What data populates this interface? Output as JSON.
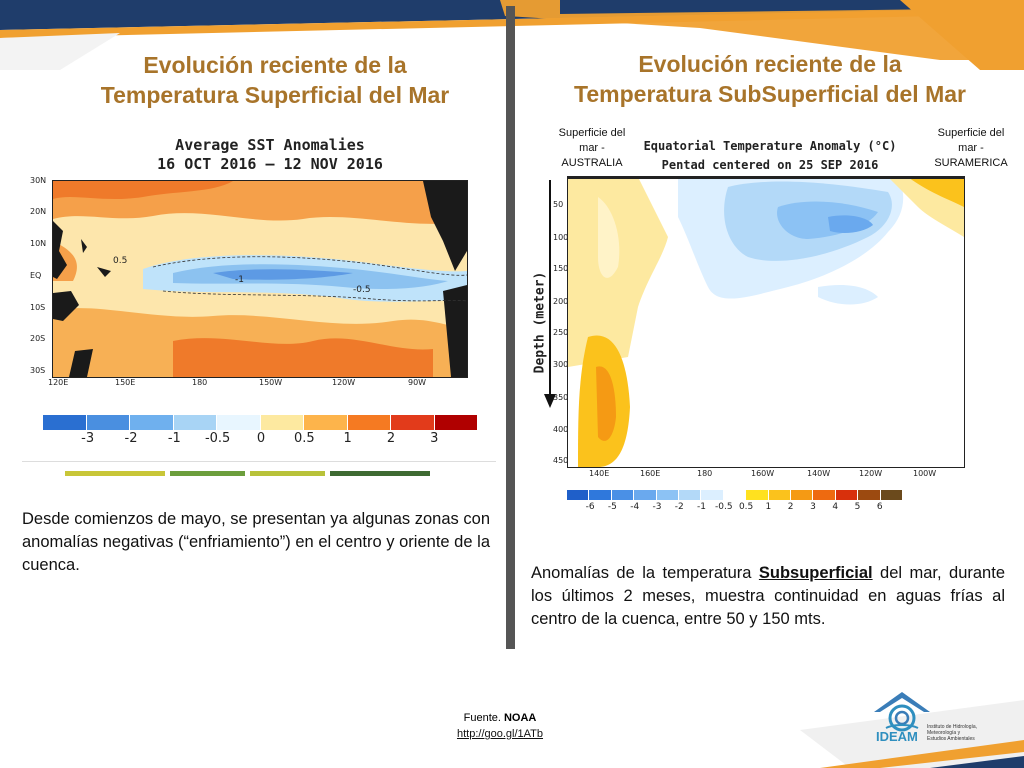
{
  "colors": {
    "title": "#a8742a",
    "band_orange": "#f0a030",
    "band_navy": "#1f3d6b",
    "band_grey": "#8a8a8a",
    "divider": "#555555"
  },
  "left": {
    "title_line1": "Evolución reciente de la",
    "title_line2": "Temperatura Superficial del Mar",
    "map_title_1": "Average SST Anomalies",
    "map_title_2": "16 OCT 2016 – 12 NOV 2016",
    "lat_labels": [
      "30N",
      "20N",
      "10N",
      "EQ",
      "10S",
      "20S",
      "30S"
    ],
    "lon_labels": [
      "120E",
      "150E",
      "180",
      "150W",
      "120W",
      "90W"
    ],
    "contour_labels": [
      "0.5",
      "-1",
      "-0.5"
    ],
    "legend_labels": [
      "-3",
      "-2",
      "-1",
      "-0.5",
      "0",
      "0.5",
      "1",
      "2",
      "3"
    ],
    "legend_colors": [
      "#2a6fd1",
      "#4a8fe0",
      "#6fb0ee",
      "#a8d4f5",
      "#e8f6ff",
      "#fde9a0",
      "#fdb44b",
      "#f57a22",
      "#e23b1b",
      "#b00000"
    ],
    "paragraph": "Desde comienzos de mayo, se presentan ya algunas zonas con anomalías negativas (“enfriamiento”) en el centro y oriente de la cuenca."
  },
  "right": {
    "title_line1": "Evolución reciente de la",
    "title_line2": "Temperatura SubSuperficial del Mar",
    "note_australia": "Superficie del mar - AUSTRALIA",
    "note_suramerica": "Superficie del mar - SURAMERICA",
    "map_title_1": "Equatorial Temperature Anomaly (°C)",
    "map_title_2": "Pentad centered on 25 SEP 2016",
    "y_axis_label": "Depth (meter)",
    "depth_labels": [
      "50",
      "100",
      "150",
      "200",
      "250",
      "300",
      "350",
      "400",
      "450"
    ],
    "lon_labels": [
      "140E",
      "160E",
      "180",
      "160W",
      "140W",
      "120W",
      "100W"
    ],
    "legend_labels": [
      "-6",
      "-5",
      "-4",
      "-3",
      "-2",
      "-1",
      "-0.5",
      "0.5",
      "1",
      "2",
      "3",
      "4",
      "5",
      "6"
    ],
    "legend_colors": [
      "#1f5fc9",
      "#2f78dc",
      "#4a90e6",
      "#6aa9ee",
      "#8cc2f4",
      "#b3d9f8",
      "#dcefff",
      "#ffffff",
      "#ffe11f",
      "#fbc21c",
      "#f59a14",
      "#ee6a10",
      "#d8300c",
      "#9c4a10",
      "#6b4a1c"
    ],
    "paragraph_before": "Anomalías de la temperatura ",
    "paragraph_underlined": "Subsuperficial",
    "paragraph_after": " del mar, durante los últimos 2 meses, muestra continuidad en aguas frías al centro de la cuenca, entre 50 y 150 mts."
  },
  "footer": {
    "source_prefix": "Fuente. ",
    "source_name": "NOAA",
    "link": "http://goo.gl/1ATb"
  },
  "logo": {
    "name": "IDEAM",
    "line1": "Instituto de Hidrología,",
    "line2": "Meteorología y",
    "line3": "Estudios Ambientales"
  }
}
